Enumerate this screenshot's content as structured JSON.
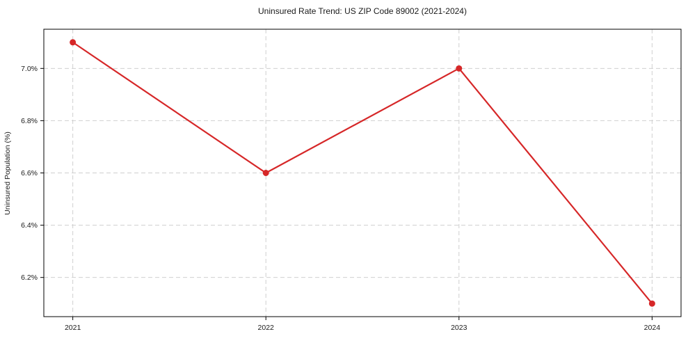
{
  "chart_data": {
    "type": "line",
    "title": "Uninsured Rate Trend: US ZIP Code 89002 (2021-2024)",
    "xlabel": "",
    "ylabel": "Uninsured Population (%)",
    "x": [
      2021,
      2022,
      2023,
      2024
    ],
    "values": [
      7.1,
      6.6,
      7.0,
      6.1
    ],
    "xticks": [
      2021,
      2022,
      2023,
      2024
    ],
    "xtick_labels": [
      "2021",
      "2022",
      "2023",
      "2024"
    ],
    "yticks": [
      6.2,
      6.4,
      6.6,
      6.8,
      7.0
    ],
    "ytick_labels": [
      "6.2%",
      "6.4%",
      "6.6%",
      "6.8%",
      "7.0%"
    ],
    "xlim": [
      2020.85,
      2024.15
    ],
    "ylim": [
      6.05,
      7.15
    ],
    "grid": true,
    "legend_position": "none",
    "line_color": "#d62728",
    "marker": "circle",
    "grid_color": "#cfcfcf",
    "axis_color": "#000000"
  }
}
